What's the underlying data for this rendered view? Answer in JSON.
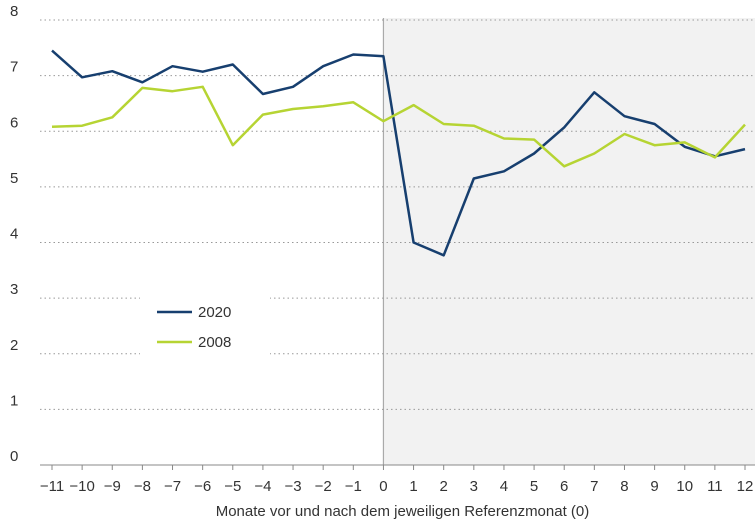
{
  "chart_data": {
    "type": "line",
    "xlabel": "Monate vor und nach dem jeweiligen Referenzmonat (0)",
    "x": [
      -11,
      -10,
      -9,
      -8,
      -7,
      -6,
      -5,
      -4,
      -3,
      -2,
      -1,
      0,
      1,
      2,
      3,
      4,
      5,
      6,
      7,
      8,
      9,
      10,
      11,
      12
    ],
    "xlim": [
      -11,
      12
    ],
    "xticks": [
      {
        "value": -11,
        "label": "−11"
      },
      {
        "value": -10,
        "label": "−10"
      },
      {
        "value": -9,
        "label": "−9"
      },
      {
        "value": -8,
        "label": "−8"
      },
      {
        "value": -7,
        "label": "−7"
      },
      {
        "value": -6,
        "label": "−6"
      },
      {
        "value": -5,
        "label": "−5"
      },
      {
        "value": -4,
        "label": "−4"
      },
      {
        "value": -3,
        "label": "−3"
      },
      {
        "value": -2,
        "label": "−2"
      },
      {
        "value": -1,
        "label": "−1"
      },
      0,
      1,
      2,
      3,
      4,
      5,
      6,
      7,
      8,
      9,
      10,
      11,
      12
    ],
    "ylim": [
      0,
      8
    ],
    "yticks": [
      0,
      1,
      2,
      3,
      4,
      5,
      6,
      7,
      8
    ],
    "grid": true,
    "highlight_xrange": [
      0,
      12
    ],
    "legend_position": "center-left",
    "series": [
      {
        "name": "2020",
        "color": "#173f6f",
        "values": [
          7.45,
          6.97,
          7.08,
          6.88,
          7.17,
          7.07,
          7.2,
          6.67,
          6.8,
          7.17,
          7.38,
          7.35,
          4.0,
          3.77,
          5.15,
          5.28,
          5.6,
          6.07,
          6.7,
          6.27,
          6.13,
          5.72,
          5.55,
          5.68
        ]
      },
      {
        "name": "2008",
        "color": "#b6d433",
        "values": [
          6.08,
          6.1,
          6.25,
          6.78,
          6.72,
          6.8,
          5.75,
          6.3,
          6.4,
          6.45,
          6.52,
          6.18,
          6.47,
          6.13,
          6.1,
          5.87,
          5.85,
          5.37,
          5.6,
          5.95,
          5.75,
          5.8,
          5.53,
          6.12
        ]
      }
    ]
  }
}
